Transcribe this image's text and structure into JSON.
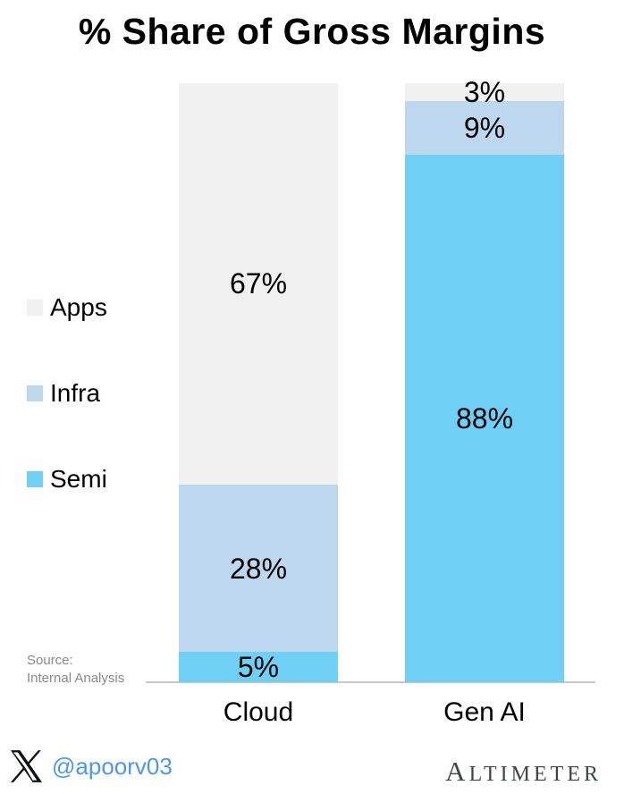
{
  "chart_data": {
    "type": "bar",
    "variant": "stacked-100-percent",
    "title": "% Share of Gross Margins",
    "categories": [
      "Cloud",
      "Gen AI"
    ],
    "series": [
      {
        "name": "Apps",
        "color": "#F1F1F1",
        "values": [
          67,
          3
        ]
      },
      {
        "name": "Infra",
        "color": "#BDD7EE",
        "values": [
          28,
          9
        ]
      },
      {
        "name": "Semi",
        "color": "#6FCFF5",
        "values": [
          5,
          88
        ]
      }
    ],
    "series_order": "top-to-bottom",
    "value_suffix": "%",
    "ylim": [
      0,
      100
    ],
    "grid": false,
    "legend_position": "left",
    "value_labels": {
      "Cloud": {
        "Apps": "67%",
        "Infra": "28%",
        "Semi": "5%"
      },
      "Gen AI": {
        "Apps": "3%",
        "Infra": "9%",
        "Semi": "88%"
      }
    }
  },
  "source": {
    "line1": "Source:",
    "line2": "Internal Analysis"
  },
  "footer": {
    "x_handle": "@apoorv03",
    "brand": "ALTIMETER"
  },
  "colors": {
    "handle_blue": "#4B97F0",
    "brand_gray": "#3F453F",
    "axis_line": "#C8C8C8",
    "source_text": "#8A8A8A",
    "label_text": "#000000",
    "background": "#FFFFFF"
  }
}
